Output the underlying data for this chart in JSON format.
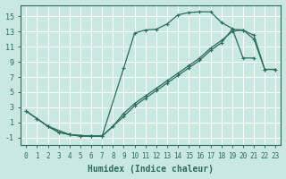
{
  "xlabel": "Humidex (Indice chaleur)",
  "bg_color": "#c8e8e0",
  "grid_color": "#ffffff",
  "line_color": "#2d6b5e",
  "curve1_x": [
    0,
    1,
    2,
    3,
    4,
    5,
    6,
    7,
    9,
    10,
    11,
    12,
    13,
    14,
    15,
    16,
    17,
    18,
    19,
    20,
    21
  ],
  "curve1_y": [
    2.5,
    1.5,
    0.5,
    -0.3,
    -0.6,
    -0.8,
    -0.8,
    -0.8,
    8.2,
    12.8,
    13.2,
    13.3,
    14.0,
    15.2,
    15.5,
    15.6,
    15.6,
    14.2,
    13.4,
    9.5,
    9.5
  ],
  "curve2_x": [
    1,
    2,
    3,
    4,
    5,
    6,
    7,
    8,
    9,
    10,
    11,
    12,
    13,
    14,
    15,
    16,
    17,
    18,
    19,
    20,
    21,
    22,
    23
  ],
  "curve2_y": [
    1.5,
    0.5,
    -0.3,
    -0.6,
    -0.8,
    -0.8,
    -0.8,
    0.5,
    1.8,
    3.2,
    4.2,
    5.2,
    6.2,
    7.2,
    8.2,
    9.2,
    10.5,
    11.5,
    13.3,
    13.2,
    12.5,
    8.0,
    8.0
  ],
  "curve3_x": [
    0,
    2,
    4,
    6,
    7,
    8,
    9,
    10,
    11,
    12,
    13,
    14,
    15,
    16,
    17,
    18,
    19,
    20,
    21,
    22,
    23
  ],
  "curve3_y": [
    2.5,
    0.5,
    -0.6,
    -0.8,
    -0.8,
    0.5,
    2.2,
    3.5,
    4.5,
    5.5,
    6.5,
    7.5,
    8.5,
    9.5,
    10.8,
    11.8,
    13.0,
    13.2,
    12.0,
    8.0,
    8.0
  ],
  "xlim": [
    -0.5,
    23.5
  ],
  "ylim": [
    -2.0,
    16.5
  ],
  "xticks": [
    0,
    1,
    2,
    3,
    4,
    5,
    6,
    7,
    8,
    9,
    10,
    11,
    12,
    13,
    14,
    15,
    16,
    17,
    18,
    19,
    20,
    21,
    22,
    23
  ],
  "yticks": [
    -1,
    1,
    3,
    5,
    7,
    9,
    11,
    13,
    15
  ],
  "xlabel_fontsize": 7,
  "tick_fontsize": 5.5
}
